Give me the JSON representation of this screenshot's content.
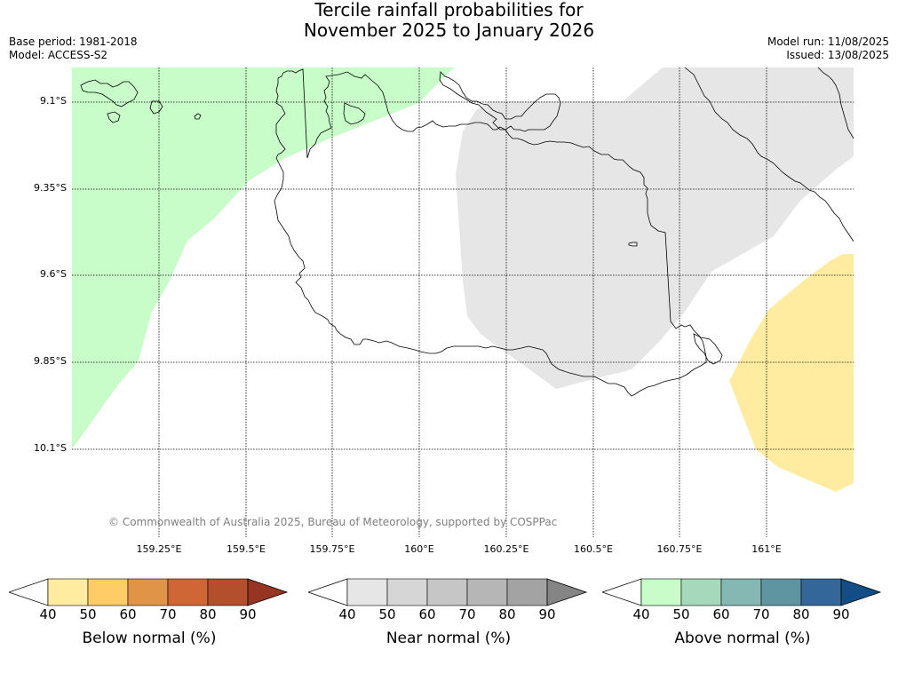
{
  "header": {
    "title_line1": "Tercile rainfall probabilities for",
    "title_line2": "November 2025 to January 2026",
    "base_period": "Base period: 1981-2018",
    "model": "Model: ACCESS-S2",
    "model_run": "Model run: 11/08/2025",
    "issued": "Issued: 13/08/2025"
  },
  "map": {
    "lat_labels": [
      "9.1°S",
      "9.35°S",
      "9.6°S",
      "9.85°S",
      "10.1°S"
    ],
    "lon_labels": [
      "159.25°E",
      "159.5°E",
      "159.75°E",
      "160°E",
      "160.25°E",
      "160.5°E",
      "160.75°E",
      "161°E"
    ],
    "copyright": "© Commonwealth of Australia 2025, Bureau of Meteorology, supported by COSPPac",
    "colors": {
      "above_normal_fill": "#c8fcc8",
      "near_normal_fill": "#e6e6e6",
      "below_normal_fill": "#ffeca0",
      "grid": "#000000",
      "coastline": "#000000"
    }
  },
  "colorbars": [
    {
      "title": "Below normal (%)",
      "ticks": [
        "40",
        "50",
        "60",
        "70",
        "80",
        "90"
      ],
      "colors": [
        "#ffffff",
        "#ffeca0",
        "#ffcc66",
        "#e09448",
        "#cf6636",
        "#b34f2c",
        "#963522"
      ]
    },
    {
      "title": "Near normal (%)",
      "ticks": [
        "40",
        "50",
        "60",
        "70",
        "80",
        "90"
      ],
      "colors": [
        "#ffffff",
        "#e6e6e6",
        "#d6d6d6",
        "#c6c6c6",
        "#b6b6b6",
        "#a3a3a3",
        "#858585"
      ]
    },
    {
      "title": "Above normal (%)",
      "ticks": [
        "40",
        "50",
        "60",
        "70",
        "80",
        "90"
      ],
      "colors": [
        "#ffffff",
        "#c8fcc8",
        "#a6d9bc",
        "#85b8b3",
        "#5e95a0",
        "#336699",
        "#124d85"
      ]
    }
  ]
}
